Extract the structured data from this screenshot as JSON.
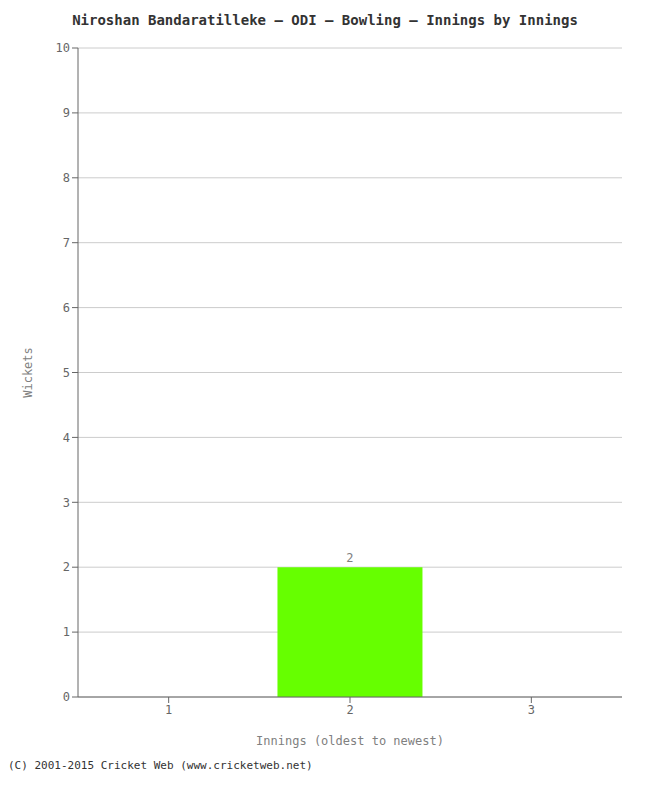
{
  "chart_data": {
    "type": "bar",
    "title": "Niroshan Bandaratilleke – ODI – Bowling – Innings by Innings",
    "x_label": "Innings (oldest to newest)",
    "y_label": "Wickets",
    "categories": [
      "1",
      "2",
      "3"
    ],
    "values": [
      0,
      2,
      0
    ],
    "color": "#66ff00",
    "ylim": [
      0,
      10
    ],
    "yticks": [
      0,
      1,
      2,
      3,
      4,
      5,
      6,
      7,
      8,
      9,
      10
    ],
    "grid": true,
    "data_labels": true,
    "annotations": [
      "(C) 2001-2015 Cricket Web (www.cricketweb.net)"
    ]
  }
}
